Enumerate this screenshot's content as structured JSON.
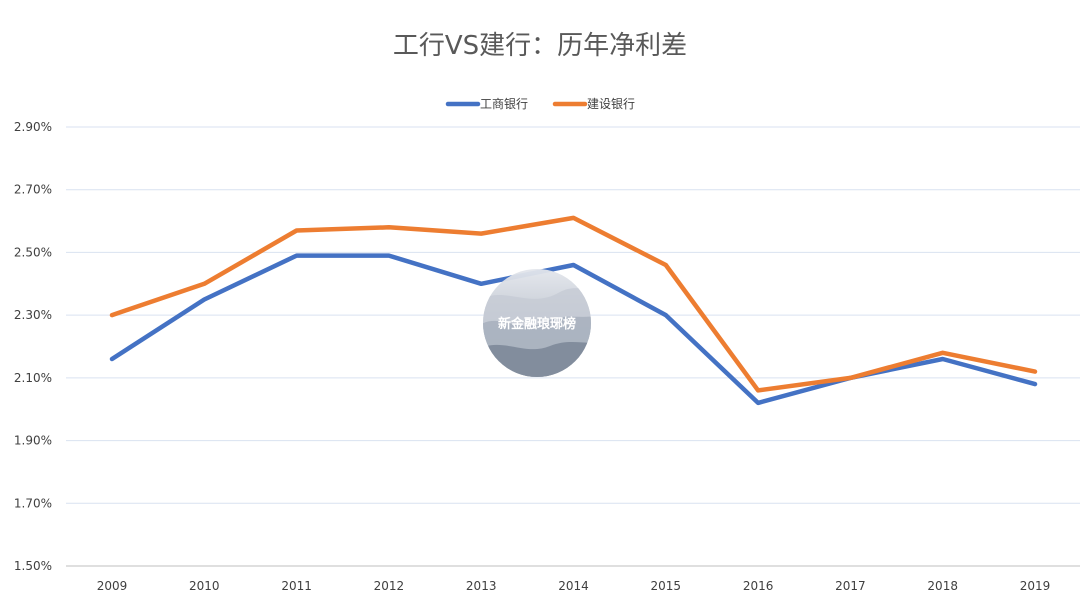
{
  "chart_data": {
    "type": "line",
    "title": "工行VS建行：历年净利差",
    "categories": [
      "2009",
      "2010",
      "2011",
      "2012",
      "2013",
      "2014",
      "2015",
      "2016",
      "2017",
      "2018",
      "2019"
    ],
    "series": [
      {
        "name": "工商银行",
        "color": "#4472C4",
        "values": [
          2.16,
          2.35,
          2.49,
          2.49,
          2.4,
          2.46,
          2.3,
          2.02,
          2.1,
          2.16,
          2.08
        ]
      },
      {
        "name": "建设银行",
        "color": "#ED7D31",
        "values": [
          2.3,
          2.4,
          2.57,
          2.58,
          2.56,
          2.61,
          2.46,
          2.06,
          2.1,
          2.18,
          2.12
        ]
      }
    ],
    "ylim": [
      1.5,
      2.9
    ],
    "yticks": [
      "1.50%",
      "1.70%",
      "1.90%",
      "2.10%",
      "2.30%",
      "2.50%",
      "2.70%",
      "2.90%"
    ],
    "ytick_values": [
      1.5,
      1.7,
      1.9,
      2.1,
      2.3,
      2.5,
      2.7,
      2.9
    ],
    "grid": true,
    "legend_position": "top-center",
    "watermark": "新金融琅琊榜"
  }
}
